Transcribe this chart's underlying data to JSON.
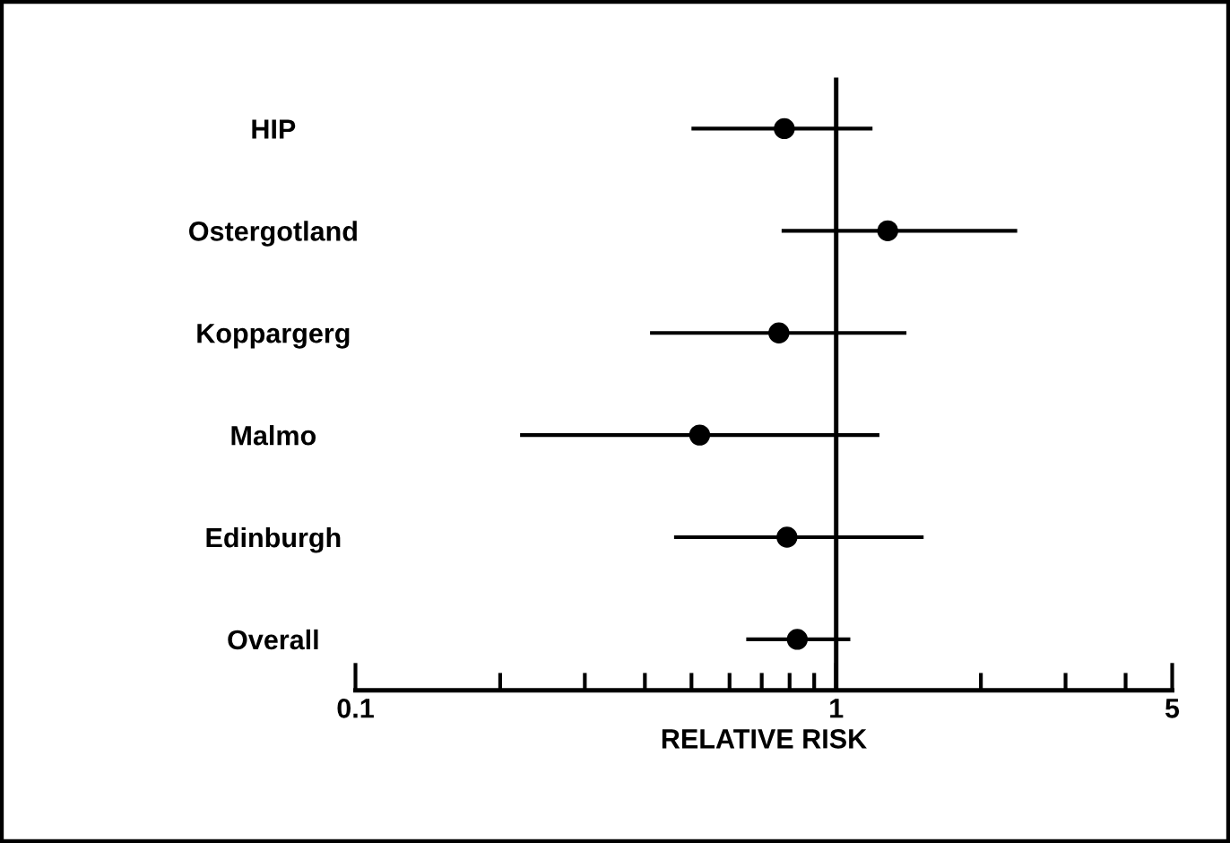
{
  "chart_data": {
    "type": "scatter",
    "orientation": "horizontal",
    "xlabel": "RELATIVE RISK",
    "categories": [
      "HIP",
      "Ostergotland",
      "Koppargerg",
      "Malmo",
      "Edinburgh",
      "Overall"
    ],
    "values": [
      0.78,
      1.28,
      0.76,
      0.52,
      0.79,
      0.83
    ],
    "errors": [
      [
        0.5,
        1.19
      ],
      [
        0.77,
        2.38
      ],
      [
        0.41,
        1.4
      ],
      [
        0.22,
        1.23
      ],
      [
        0.46,
        1.52
      ],
      [
        0.65,
        1.07
      ]
    ],
    "color": "#000000",
    "marker": "circle",
    "log": "x",
    "grid": false,
    "legend": false,
    "xlim": [
      0.1,
      5
    ],
    "xticks": [
      {
        "value": 0.1,
        "label": "0.1"
      },
      {
        "value": 0.2,
        "label": null
      },
      {
        "value": 0.3,
        "label": null
      },
      {
        "value": 0.4,
        "label": null
      },
      {
        "value": 0.5,
        "label": null
      },
      {
        "value": 0.6,
        "label": null
      },
      {
        "value": 0.7,
        "label": null
      },
      {
        "value": 0.8,
        "label": null
      },
      {
        "value": 0.9,
        "label": null
      },
      1,
      {
        "value": 2,
        "label": null
      },
      {
        "value": 3,
        "label": null
      },
      {
        "value": 4,
        "label": null
      },
      5
    ],
    "ref_lines": [
      {
        "axis": "x",
        "value": 1,
        "label": null,
        "color": "#000000"
      }
    ]
  }
}
